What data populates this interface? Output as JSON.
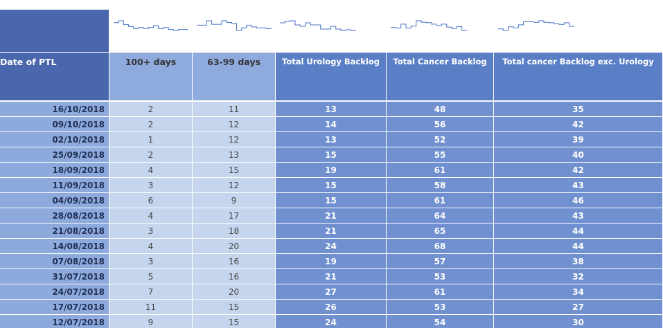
{
  "table": {
    "headers": [
      "Date of PTL",
      "100+ days",
      "63-99 days",
      "Total Urology Backlog",
      "Total Cancer Backlog",
      "Total cancer Backlog exc. Urology"
    ],
    "rows": [
      [
        "16/10/2018",
        2,
        11,
        13,
        48,
        35
      ],
      [
        "09/10/2018",
        2,
        12,
        14,
        56,
        42
      ],
      [
        "02/10/2018",
        1,
        12,
        13,
        52,
        39
      ],
      [
        "25/09/2018",
        2,
        13,
        15,
        55,
        40
      ],
      [
        "18/09/2018",
        4,
        15,
        19,
        61,
        42
      ],
      [
        "11/09/2018",
        3,
        12,
        15,
        58,
        43
      ],
      [
        "04/09/2018",
        6,
        9,
        15,
        61,
        46
      ],
      [
        "28/08/2018",
        4,
        17,
        21,
        64,
        43
      ],
      [
        "21/08/2018",
        3,
        18,
        21,
        65,
        44
      ],
      [
        "14/08/2018",
        4,
        20,
        24,
        68,
        44
      ],
      [
        "07/08/2018",
        3,
        16,
        19,
        57,
        38
      ],
      [
        "31/07/2018",
        5,
        16,
        21,
        53,
        32
      ],
      [
        "24/07/2018",
        7,
        20,
        27,
        61,
        34
      ],
      [
        "17/07/2018",
        11,
        15,
        26,
        53,
        27
      ],
      [
        "12/07/2018",
        9,
        15,
        24,
        54,
        30
      ]
    ]
  }
}
